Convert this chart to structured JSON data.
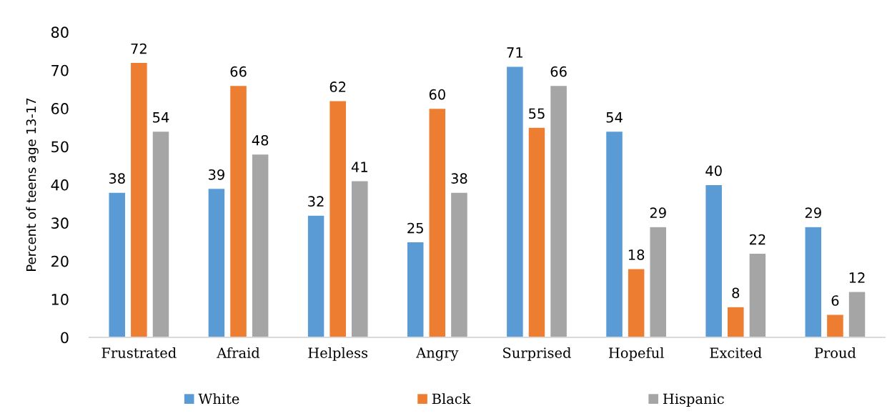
{
  "chart_data": {
    "type": "bar",
    "ylabel": "Percent of teens age 13-17",
    "categories": [
      "Frustrated",
      "Afraid",
      "Helpless",
      "Angry",
      "Surprised",
      "Hopeful",
      "Excited",
      "Proud"
    ],
    "series": [
      {
        "name": "White",
        "color": "#5b9bd5",
        "values": [
          38,
          39,
          32,
          25,
          71,
          54,
          40,
          29
        ]
      },
      {
        "name": "Black",
        "color": "#ed7d31",
        "values": [
          72,
          66,
          62,
          60,
          55,
          18,
          8,
          6
        ]
      },
      {
        "name": "Hispanic",
        "color": "#a5a5a5",
        "values": [
          54,
          48,
          41,
          38,
          66,
          29,
          22,
          12
        ]
      }
    ],
    "ylim": [
      0,
      80
    ],
    "yticks": [
      0,
      10,
      20,
      30,
      40,
      50,
      60,
      70,
      80
    ],
    "data_labels": true,
    "grid": false,
    "legend": "bottom"
  }
}
